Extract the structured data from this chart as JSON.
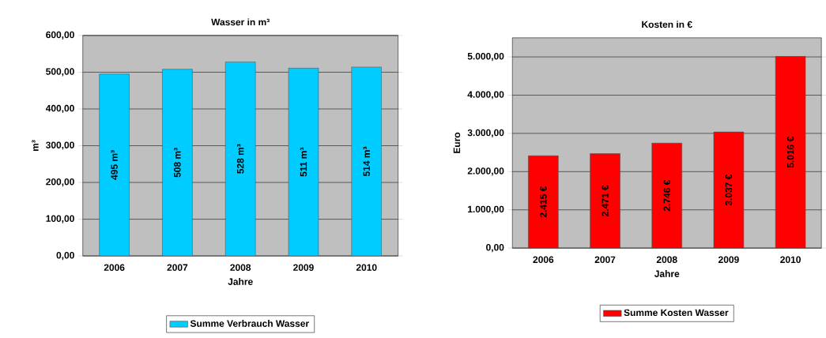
{
  "chart_data": [
    {
      "type": "bar",
      "title": "Wasser in m³",
      "xlabel": "Jahre",
      "ylabel": "m³",
      "categories": [
        "2006",
        "2007",
        "2008",
        "2009",
        "2010"
      ],
      "series": [
        {
          "name": "Summe Verbrauch Wasser",
          "color": "#00ccff",
          "values": [
            495,
            508,
            528,
            511,
            514
          ],
          "value_labels": [
            "495 m³",
            "508 m³",
            "528 m³",
            "511 m³",
            "514 m³"
          ]
        }
      ],
      "ylim": [
        0,
        600
      ],
      "yticks": [
        {
          "value": 0,
          "label": "0,00"
        },
        {
          "value": 100,
          "label": "100,00"
        },
        {
          "value": 200,
          "label": "200,00"
        },
        {
          "value": 300,
          "label": "300,00"
        },
        {
          "value": 400,
          "label": "400,00"
        },
        {
          "value": 500,
          "label": "500,00"
        },
        {
          "value": 600,
          "label": "600,00"
        }
      ],
      "grid": "y",
      "legend": "bottom"
    },
    {
      "type": "bar",
      "title": "Kosten in €",
      "xlabel": "Jahre",
      "ylabel": "Euro",
      "categories": [
        "2006",
        "2007",
        "2008",
        "2009",
        "2010"
      ],
      "series": [
        {
          "name": "Summe Kosten Wasser",
          "color": "#ff0000",
          "values": [
            2415,
            2471,
            2746,
            3037,
            5016
          ],
          "value_labels": [
            "2.415 €",
            "2.471 €",
            "2.746 €",
            "3.037 €",
            "5.016 €"
          ]
        }
      ],
      "ylim": [
        0,
        5500
      ],
      "yticks": [
        {
          "value": 0,
          "label": "0,00"
        },
        {
          "value": 1000,
          "label": "1.000,00"
        },
        {
          "value": 2000,
          "label": "2.000,00"
        },
        {
          "value": 3000,
          "label": "3.000,00"
        },
        {
          "value": 4000,
          "label": "4.000,00"
        },
        {
          "value": 5000,
          "label": "5.000,00"
        }
      ],
      "grid": "y",
      "legend": "bottom"
    }
  ]
}
